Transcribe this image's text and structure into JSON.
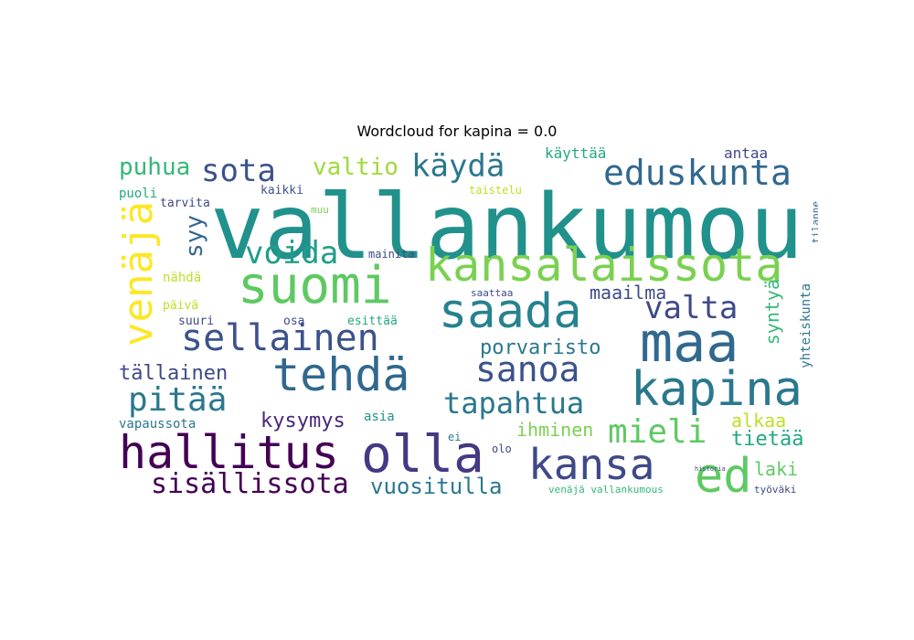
{
  "chart_data": {
    "type": "wordcloud",
    "title": "Wordcloud for kapina = 0.0",
    "colormap": "viridis",
    "background": "#ffffff",
    "words": [
      {
        "text": "vallankumou",
        "color": "#21918c"
      },
      {
        "text": "suomi",
        "color": "#5ec962"
      },
      {
        "text": "kansalaissota",
        "color": "#7ad151"
      },
      {
        "text": "maa",
        "color": "#31688e"
      },
      {
        "text": "olla",
        "color": "#443983"
      },
      {
        "text": "hallitus",
        "color": "#440154"
      },
      {
        "text": "tehdä",
        "color": "#31688e"
      },
      {
        "text": "saada",
        "color": "#26828e"
      },
      {
        "text": "kapina",
        "color": "#2a788e"
      },
      {
        "text": "sellainen",
        "color": "#3b528b"
      },
      {
        "text": "ed",
        "color": "#5ec962"
      },
      {
        "text": "kansa",
        "color": "#3e4989"
      },
      {
        "text": "venäjä",
        "color": "#fde725"
      },
      {
        "text": "eduskunta",
        "color": "#31688e"
      },
      {
        "text": "sanoa",
        "color": "#3b528b"
      },
      {
        "text": "pitää",
        "color": "#2a788e"
      },
      {
        "text": "mieli",
        "color": "#5ec962"
      },
      {
        "text": "tapahtua",
        "color": "#2a788e"
      },
      {
        "text": "voida",
        "color": "#1f9e89"
      },
      {
        "text": "valta",
        "color": "#3e4989"
      },
      {
        "text": "sota",
        "color": "#3b528b"
      },
      {
        "text": "käydä",
        "color": "#2a788e"
      },
      {
        "text": "sisällissota",
        "color": "#440154"
      },
      {
        "text": "valtio",
        "color": "#a0da39"
      },
      {
        "text": "puhua",
        "color": "#35b779"
      },
      {
        "text": "syy",
        "color": "#31688e"
      },
      {
        "text": "porvaristo",
        "color": "#2a788e"
      },
      {
        "text": "vuositulla",
        "color": "#2a788e"
      },
      {
        "text": "tällainen",
        "color": "#3e4989"
      },
      {
        "text": "kysymys",
        "color": "#482878"
      },
      {
        "text": "ihminen",
        "color": "#7ad151"
      },
      {
        "text": "alkaa",
        "color": "#bddf26"
      },
      {
        "text": "tietää",
        "color": "#22a884"
      },
      {
        "text": "syntyä",
        "color": "#35b779"
      },
      {
        "text": "maailma",
        "color": "#3e4989"
      },
      {
        "text": "laki",
        "color": "#5ec962"
      },
      {
        "text": "yhteiskunta",
        "color": "#2a788e"
      },
      {
        "text": "käyttää",
        "color": "#22a884"
      },
      {
        "text": "antaa",
        "color": "#3e4989"
      },
      {
        "text": "vapaussota",
        "color": "#2a788e"
      },
      {
        "text": "asia",
        "color": "#21918c"
      },
      {
        "text": "puoli",
        "color": "#22a884"
      },
      {
        "text": "kaikki",
        "color": "#3b528b"
      },
      {
        "text": "tarvita",
        "color": "#3e4989"
      },
      {
        "text": "nähdä",
        "color": "#bddf26"
      },
      {
        "text": "päivä",
        "color": "#bddf26"
      },
      {
        "text": "suuri",
        "color": "#3e4989"
      },
      {
        "text": "osa",
        "color": "#3e4989"
      },
      {
        "text": "esittää",
        "color": "#22a884"
      },
      {
        "text": "mainita",
        "color": "#3e4989"
      },
      {
        "text": "saattaa",
        "color": "#3e4989"
      },
      {
        "text": "taistelu",
        "color": "#bddf26"
      },
      {
        "text": "muu",
        "color": "#7ad151"
      },
      {
        "text": "tilanne",
        "color": "#31688e"
      },
      {
        "text": "olo",
        "color": "#3e4989"
      },
      {
        "text": "ei",
        "color": "#2a788e"
      },
      {
        "text": "venäjä vallankumous",
        "color": "#35b779"
      },
      {
        "text": "työväki",
        "color": "#3e4989"
      },
      {
        "text": "historia",
        "color": "#3e4989"
      }
    ]
  }
}
